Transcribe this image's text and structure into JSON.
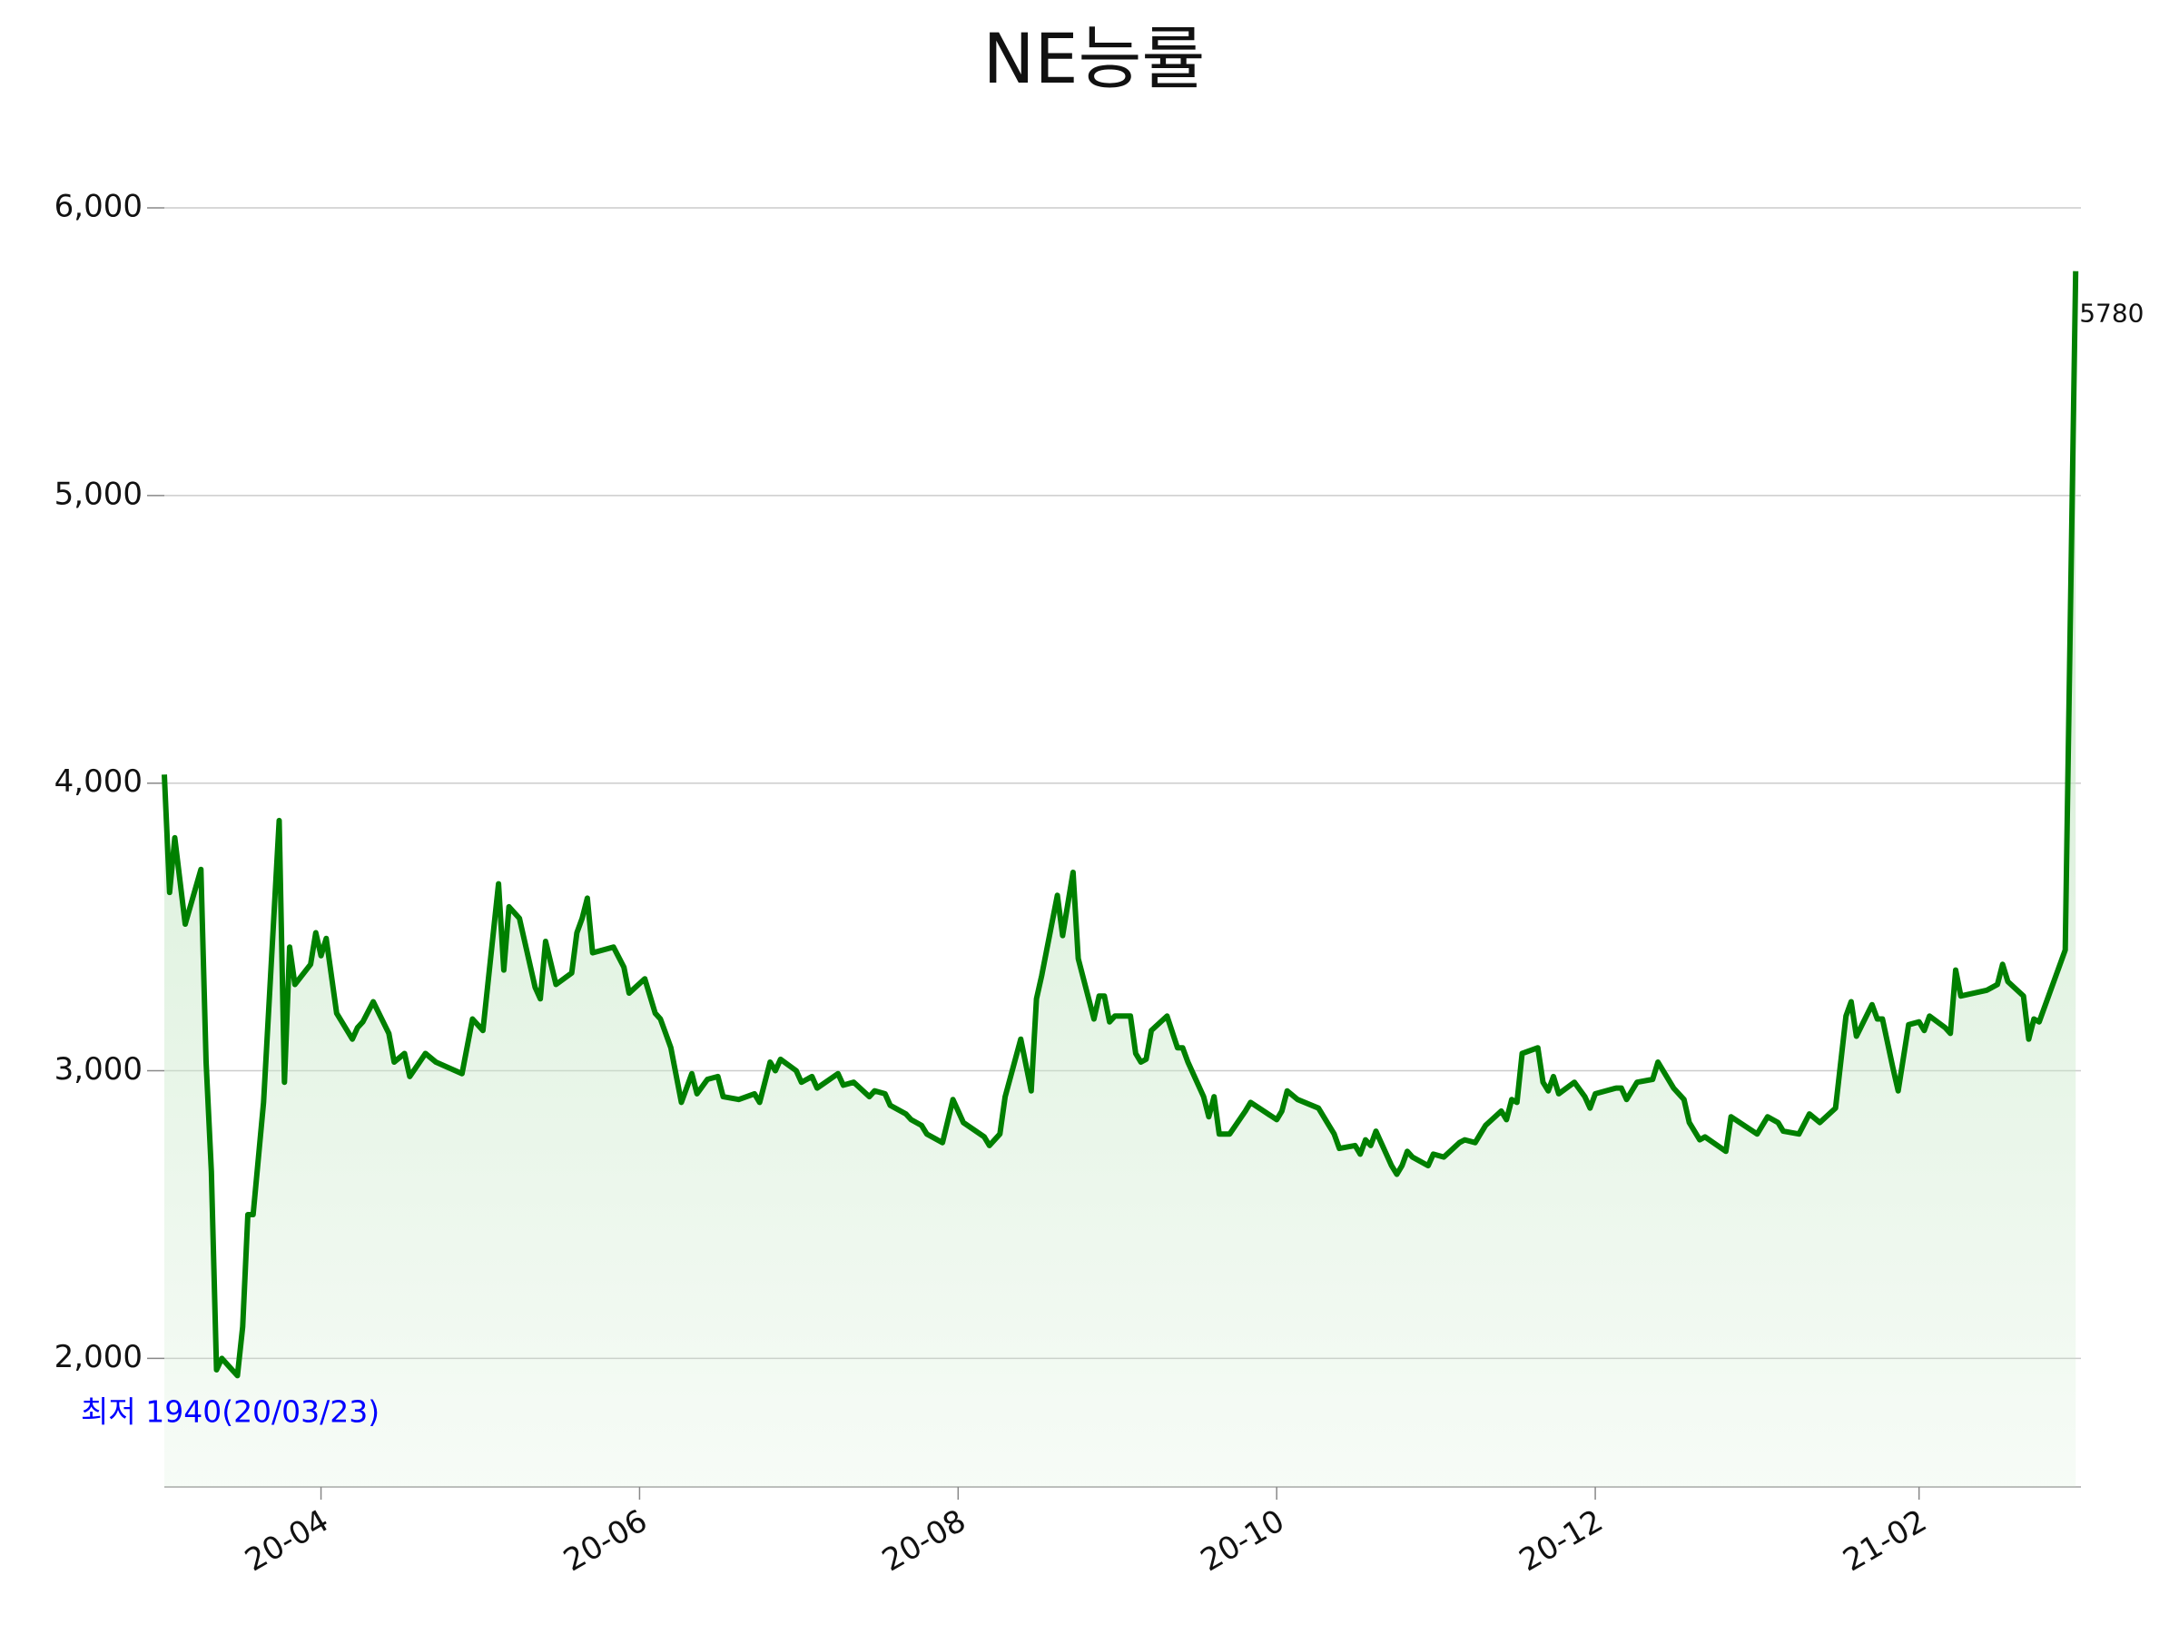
{
  "chart_data": {
    "type": "line",
    "title": "NE능률",
    "x": [
      0,
      1,
      2,
      4,
      7,
      8,
      9,
      10,
      11,
      14,
      15,
      16,
      17,
      19,
      22,
      23,
      24,
      25,
      28,
      29,
      30,
      31,
      33,
      36,
      37,
      38,
      40,
      43,
      44,
      46,
      47,
      50,
      52,
      57,
      59,
      61,
      64,
      65,
      66,
      68,
      71,
      72,
      73,
      75,
      78,
      79,
      80,
      81,
      82,
      86,
      88,
      89,
      92,
      94,
      95,
      96,
      97,
      99,
      101,
      102,
      104,
      106,
      107,
      110,
      113,
      114,
      116,
      117,
      118,
      121,
      122,
      124,
      125,
      129,
      130,
      132,
      135,
      136,
      138,
      139,
      142,
      143,
      145,
      146,
      149,
      151,
      153,
      157,
      158,
      160,
      161,
      164,
      166,
      167,
      168,
      171,
      172,
      174,
      175,
      178,
      179,
      180,
      181,
      182,
      185,
      186,
      187,
      188,
      189,
      192,
      194,
      195,
      196,
      199,
      200,
      201,
      202,
      204,
      207,
      208,
      213,
      214,
      215,
      217,
      221,
      223,
      224,
      225,
      228,
      229,
      230,
      231,
      232,
      235,
      236,
      237,
      238,
      239,
      242,
      243,
      245,
      248,
      249,
      251,
      252,
      253,
      256,
      257,
      258,
      259,
      260,
      263,
      264,
      265,
      266,
      267,
      270,
      272,
      273,
      274,
      278,
      279,
      280,
      282,
      285,
      286,
      289,
      291,
      292,
      294,
      295,
      299,
      300,
      305,
      307,
      309,
      310,
      313,
      315,
      317,
      320,
      322,
      323,
      324,
      327,
      328,
      329,
      331,
      332,
      334,
      336,
      337,
      338,
      341,
      342,
      343,
      344,
      349,
      351,
      352,
      353,
      356,
      357,
      358,
      359,
      364,
      366
    ],
    "values": [
      4030,
      3620,
      3810,
      3510,
      3700,
      3030,
      2650,
      1960,
      2000,
      1940,
      2110,
      2500,
      2500,
      2890,
      3870,
      2960,
      3430,
      3300,
      3370,
      3480,
      3400,
      3460,
      3200,
      3110,
      3150,
      3170,
      3240,
      3130,
      3030,
      3060,
      2980,
      3060,
      3030,
      2990,
      3180,
      3140,
      3650,
      3350,
      3570,
      3530,
      3290,
      3250,
      3450,
      3300,
      3340,
      3480,
      3530,
      3600,
      3410,
      3430,
      3360,
      3270,
      3320,
      3200,
      3180,
      3130,
      3080,
      2890,
      2990,
      2920,
      2970,
      2980,
      2910,
      2900,
      2920,
      2890,
      3030,
      3000,
      3040,
      3000,
      2960,
      2980,
      2940,
      2990,
      2950,
      2960,
      2910,
      2930,
      2920,
      2880,
      2850,
      2830,
      2810,
      2780,
      2750,
      2900,
      2820,
      2770,
      2740,
      2780,
      2910,
      3110,
      2930,
      3250,
      3330,
      3610,
      3470,
      3690,
      3390,
      3180,
      3260,
      3260,
      3170,
      3190,
      3190,
      3060,
      3030,
      3040,
      3140,
      3190,
      3080,
      3080,
      3030,
      2910,
      2840,
      2910,
      2780,
      2780,
      2860,
      2890,
      2830,
      2860,
      2930,
      2900,
      2870,
      2810,
      2780,
      2730,
      2740,
      2710,
      2760,
      2740,
      2790,
      2670,
      2640,
      2670,
      2720,
      2700,
      2670,
      2710,
      2700,
      2750,
      2760,
      2750,
      2780,
      2810,
      2860,
      2830,
      2900,
      2890,
      3060,
      3080,
      2960,
      2930,
      2980,
      2920,
      2960,
      2910,
      2870,
      2920,
      2940,
      2940,
      2900,
      2960,
      2970,
      3030,
      2940,
      2900,
      2820,
      2760,
      2770,
      2720,
      2840,
      2780,
      2840,
      2820,
      2790,
      2780,
      2850,
      2820,
      2870,
      3190,
      3240,
      3120,
      3230,
      3180,
      3180,
      3010,
      2930,
      3160,
      3170,
      3140,
      3190,
      3150,
      3130,
      3350,
      3260,
      3280,
      3300,
      3370,
      3310,
      3260,
      3110,
      3180,
      3170,
      3420,
      5780
    ],
    "color": "#008000",
    "area_color": "#c8e8c8",
    "xlim": [
      0,
      367
    ],
    "xticks": [
      {
        "value": 30,
        "label": "20-04"
      },
      {
        "value": 91,
        "label": "20-06"
      },
      {
        "value": 152,
        "label": "20-08"
      },
      {
        "value": 213,
        "label": "20-10"
      },
      {
        "value": 274,
        "label": "20-12"
      },
      {
        "value": 336,
        "label": "21-02"
      }
    ],
    "ylim": [
      1553,
      6240
    ],
    "yticks": [
      {
        "value": 2000,
        "label": "2,000"
      },
      {
        "value": 3000,
        "label": "3,000"
      },
      {
        "value": 4000,
        "label": "4,000"
      },
      {
        "value": 5000,
        "label": "5,000"
      },
      {
        "value": 6000,
        "label": "6,000"
      }
    ],
    "grid": true,
    "max_label": "5780",
    "min_label": "최저 1940(20/03/23)",
    "min_label_color": "#0000ff"
  }
}
